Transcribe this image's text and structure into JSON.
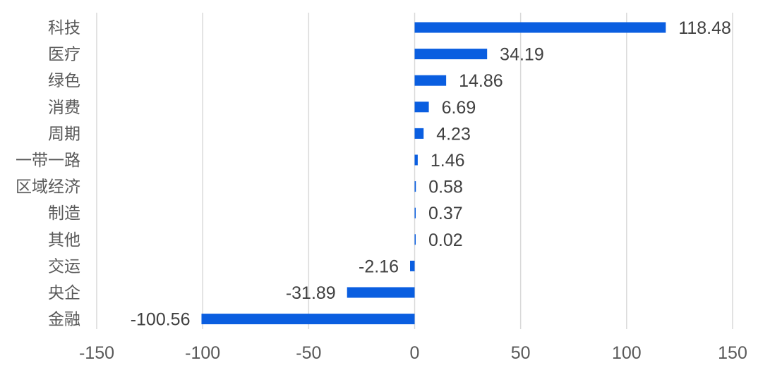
{
  "chart_data": {
    "type": "bar",
    "orientation": "horizontal",
    "categories": [
      "科技",
      "医疗",
      "绿色",
      "消费",
      "周期",
      "一带一路",
      "区域经济",
      "制造",
      "其他",
      "交运",
      "央企",
      "金融"
    ],
    "values": [
      118.48,
      34.19,
      14.86,
      6.69,
      4.23,
      1.46,
      0.58,
      0.37,
      0.02,
      -2.16,
      -31.89,
      -100.56
    ],
    "value_labels": [
      "118.48",
      "34.19",
      "14.86",
      "6.69",
      "4.23",
      "1.46",
      "0.58",
      "0.37",
      "0.02",
      "-2.16",
      "-31.89",
      "-100.56"
    ],
    "xlim": [
      -150,
      150
    ],
    "x_ticks": [
      -150,
      -100,
      -50,
      0,
      50,
      100,
      150
    ],
    "x_tick_labels": [
      "-150",
      "-100",
      "-50",
      "0",
      "50",
      "100",
      "150"
    ],
    "title": "",
    "xlabel": "",
    "ylabel": "",
    "grid": "vertical",
    "legend": "none",
    "bar_color": "#0a5ee0"
  }
}
